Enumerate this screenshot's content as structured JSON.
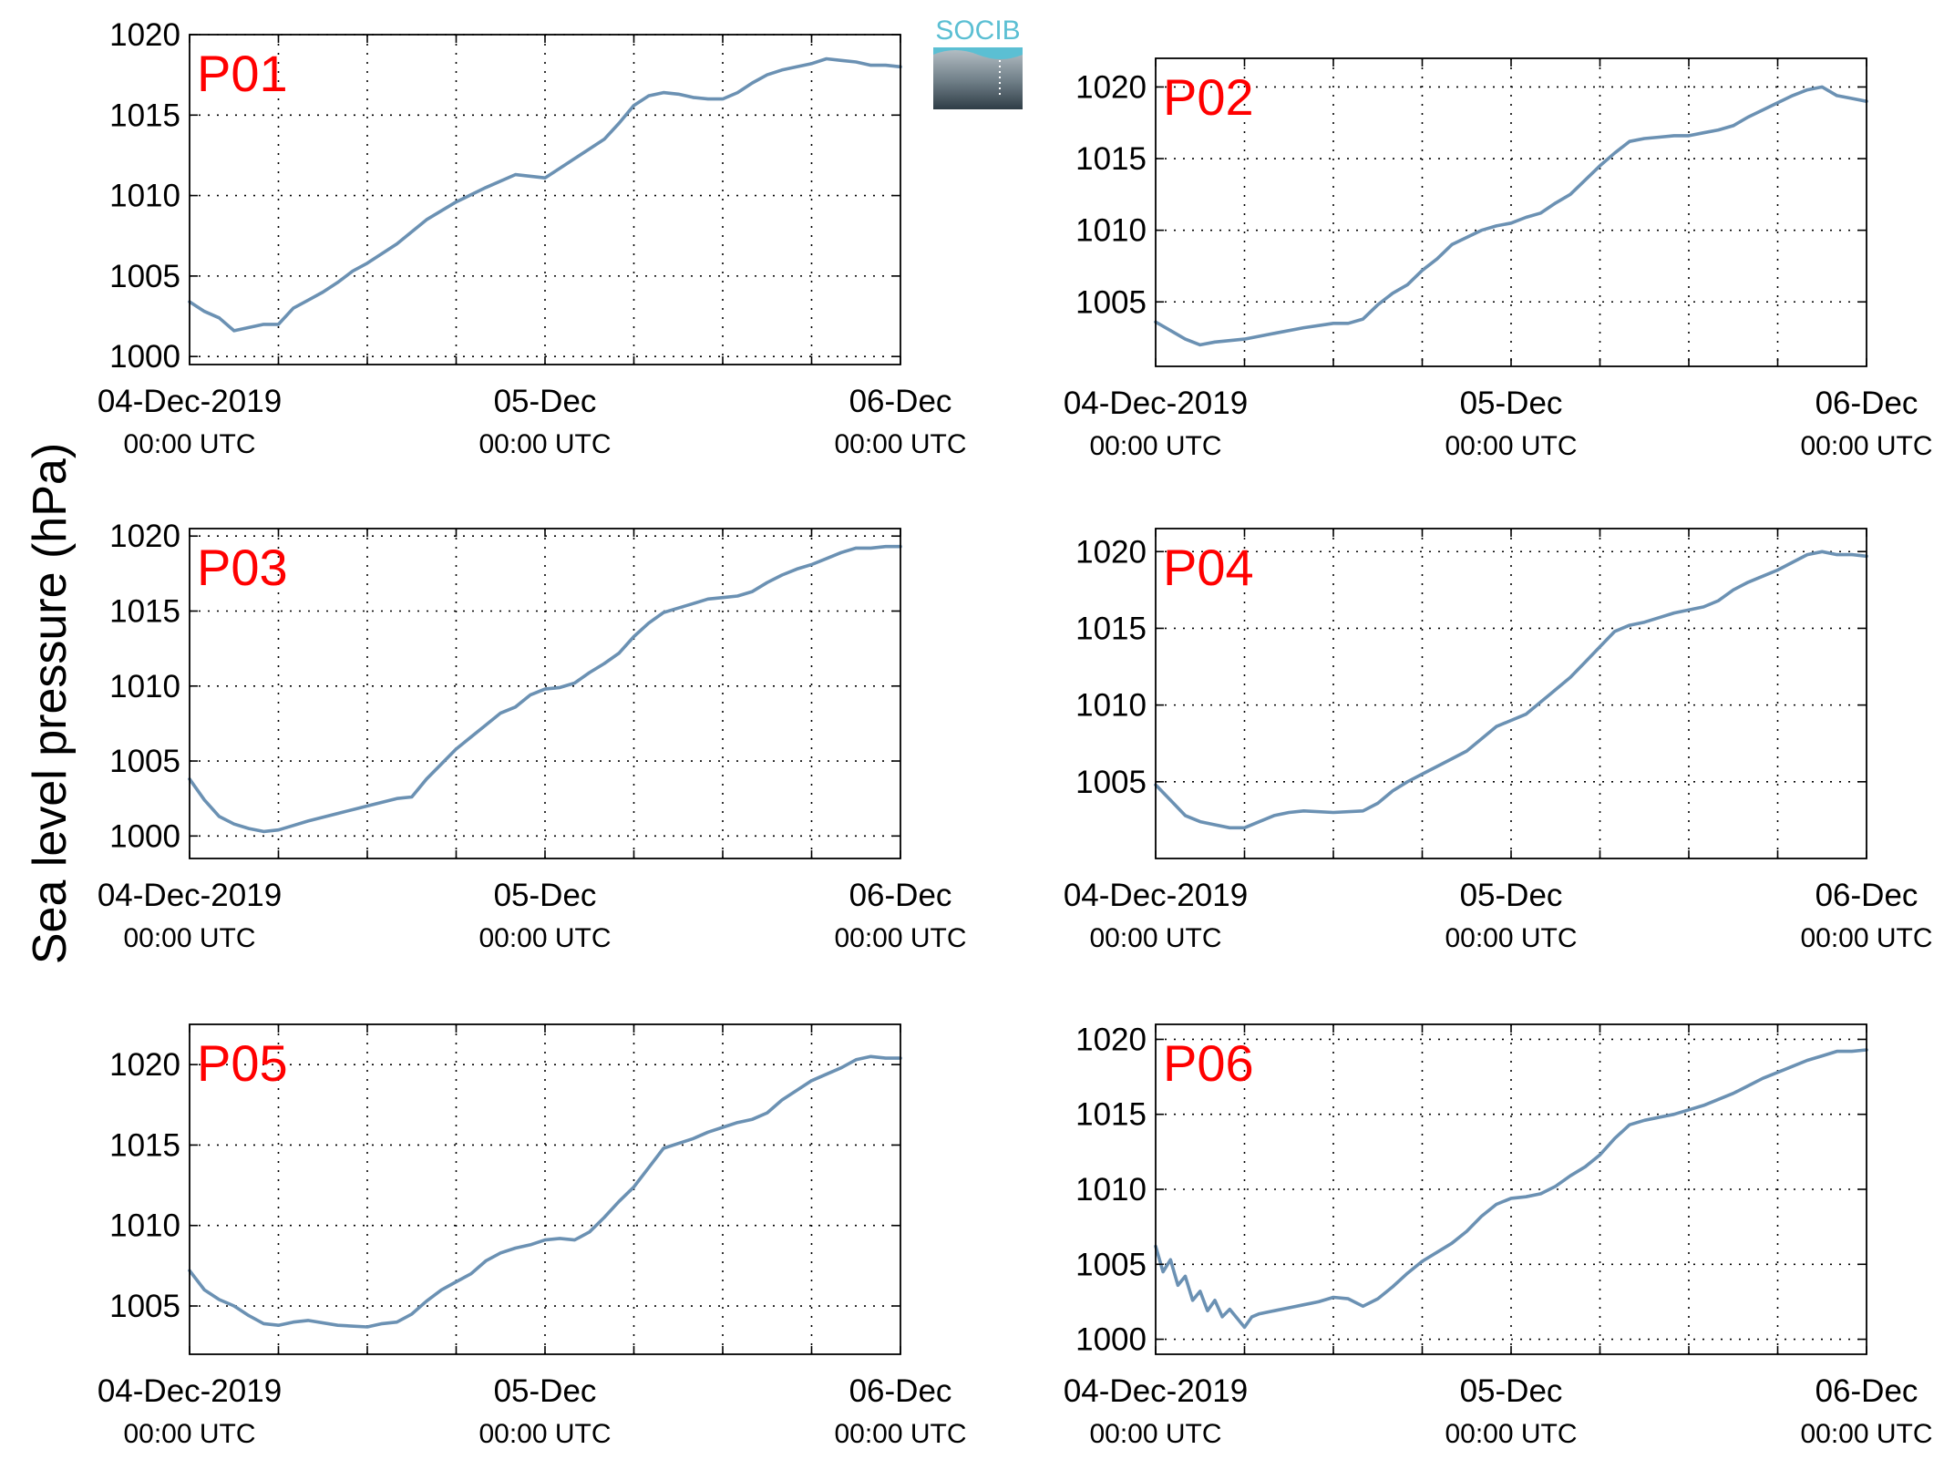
{
  "figure": {
    "ylabel": "Sea level pressure (hPa)",
    "logo_text": "SOCIB",
    "line_color": "#6b91b3",
    "panel_label_color": "#ff0000"
  },
  "chart_data": [
    {
      "type": "line",
      "panel": "P01",
      "xlim_hours": [
        0,
        48
      ],
      "ylim": [
        999.5,
        1020
      ],
      "yticks": [
        1000,
        1005,
        1010,
        1015,
        1020
      ],
      "xticks": [
        {
          "h": 0,
          "line1": "04-Dec-2019",
          "line2": "00:00 UTC"
        },
        {
          "h": 24,
          "line1": "05-Dec",
          "line2": "00:00 UTC"
        },
        {
          "h": 48,
          "line1": "06-Dec",
          "line2": "00:00 UTC"
        }
      ],
      "grid_hours": [
        6,
        12,
        18,
        24,
        30,
        36,
        42
      ],
      "series": [
        {
          "x_hours": [
            0,
            1,
            2,
            3,
            4,
            5,
            6,
            7,
            8,
            9,
            10,
            11,
            12,
            14,
            16,
            18,
            20,
            22,
            24,
            25,
            26,
            27,
            28,
            29,
            30,
            31,
            32,
            33,
            34,
            35,
            36,
            37,
            38,
            39,
            40,
            41,
            42,
            43,
            44,
            45,
            46,
            47,
            48
          ],
          "values": [
            1003.4,
            1002.8,
            1002.4,
            1001.6,
            1001.8,
            1002.0,
            1002.0,
            1003.0,
            1003.5,
            1004.0,
            1004.6,
            1005.3,
            1005.8,
            1007.0,
            1008.5,
            1009.6,
            1010.5,
            1011.3,
            1011.1,
            1011.7,
            1012.3,
            1012.9,
            1013.5,
            1014.5,
            1015.6,
            1016.2,
            1016.4,
            1016.3,
            1016.1,
            1016.0,
            1016.0,
            1016.4,
            1017.0,
            1017.5,
            1017.8,
            1018.0,
            1018.2,
            1018.5,
            1018.4,
            1018.3,
            1018.1,
            1018.1,
            1018.0
          ]
        }
      ]
    },
    {
      "type": "line",
      "panel": "P02",
      "xlim_hours": [
        0,
        48
      ],
      "ylim": [
        1000.5,
        1022
      ],
      "yticks": [
        1005,
        1010,
        1015,
        1020
      ],
      "xticks": [
        {
          "h": 0,
          "line1": "04-Dec-2019",
          "line2": "00:00 UTC"
        },
        {
          "h": 24,
          "line1": "05-Dec",
          "line2": "00:00 UTC"
        },
        {
          "h": 48,
          "line1": "06-Dec",
          "line2": "00:00 UTC"
        }
      ],
      "grid_hours": [
        6,
        12,
        18,
        24,
        30,
        36,
        42
      ],
      "series": [
        {
          "x_hours": [
            0,
            1,
            2,
            3,
            4,
            5,
            6,
            8,
            10,
            12,
            13,
            14,
            15,
            16,
            17,
            18,
            19,
            20,
            21,
            22,
            23,
            24,
            25,
            26,
            27,
            28,
            29,
            30,
            31,
            32,
            33,
            34,
            35,
            36,
            37,
            38,
            39,
            40,
            41,
            42,
            43,
            44,
            45,
            46,
            47,
            48
          ],
          "values": [
            1003.6,
            1003.0,
            1002.4,
            1002.0,
            1002.2,
            1002.3,
            1002.4,
            1002.8,
            1003.2,
            1003.5,
            1003.5,
            1003.8,
            1004.8,
            1005.6,
            1006.2,
            1007.2,
            1008.0,
            1009.0,
            1009.5,
            1010.0,
            1010.3,
            1010.5,
            1010.9,
            1011.2,
            1011.9,
            1012.5,
            1013.5,
            1014.5,
            1015.4,
            1016.2,
            1016.4,
            1016.5,
            1016.6,
            1016.6,
            1016.8,
            1017.0,
            1017.3,
            1017.9,
            1018.4,
            1018.9,
            1019.4,
            1019.8,
            1020.0,
            1019.4,
            1019.2,
            1019.0
          ]
        }
      ]
    },
    {
      "type": "line",
      "panel": "P03",
      "xlim_hours": [
        0,
        48
      ],
      "ylim": [
        998.5,
        1020.5
      ],
      "yticks": [
        1000,
        1005,
        1010,
        1015,
        1020
      ],
      "xticks": [
        {
          "h": 0,
          "line1": "04-Dec-2019",
          "line2": "00:00 UTC"
        },
        {
          "h": 24,
          "line1": "05-Dec",
          "line2": "00:00 UTC"
        },
        {
          "h": 48,
          "line1": "06-Dec",
          "line2": "00:00 UTC"
        }
      ],
      "grid_hours": [
        6,
        12,
        18,
        24,
        30,
        36,
        42
      ],
      "series": [
        {
          "x_hours": [
            0,
            1,
            2,
            3,
            4,
            5,
            6,
            7,
            8,
            10,
            12,
            14,
            15,
            16,
            17,
            18,
            19,
            20,
            21,
            22,
            23,
            24,
            25,
            26,
            27,
            28,
            29,
            30,
            31,
            32,
            33,
            34,
            35,
            36,
            37,
            38,
            39,
            40,
            41,
            42,
            43,
            44,
            45,
            46,
            47,
            48
          ],
          "values": [
            1003.8,
            1002.4,
            1001.3,
            1000.8,
            1000.5,
            1000.3,
            1000.4,
            1000.7,
            1001.0,
            1001.5,
            1002.0,
            1002.5,
            1002.6,
            1003.8,
            1004.8,
            1005.8,
            1006.6,
            1007.4,
            1008.2,
            1008.6,
            1009.4,
            1009.8,
            1009.9,
            1010.2,
            1010.9,
            1011.5,
            1012.2,
            1013.3,
            1014.2,
            1014.9,
            1015.2,
            1015.5,
            1015.8,
            1015.9,
            1016.0,
            1016.3,
            1016.9,
            1017.4,
            1017.8,
            1018.1,
            1018.5,
            1018.9,
            1019.2,
            1019.2,
            1019.3,
            1019.3
          ]
        }
      ]
    },
    {
      "type": "line",
      "panel": "P04",
      "xlim_hours": [
        0,
        48
      ],
      "ylim": [
        1000,
        1021.5
      ],
      "yticks": [
        1005,
        1010,
        1015,
        1020
      ],
      "xticks": [
        {
          "h": 0,
          "line1": "04-Dec-2019",
          "line2": "00:00 UTC"
        },
        {
          "h": 24,
          "line1": "05-Dec",
          "line2": "00:00 UTC"
        },
        {
          "h": 48,
          "line1": "06-Dec",
          "line2": "00:00 UTC"
        }
      ],
      "grid_hours": [
        6,
        12,
        18,
        24,
        30,
        36,
        42
      ],
      "series": [
        {
          "x_hours": [
            0,
            1,
            2,
            3,
            4,
            5,
            6,
            7,
            8,
            9,
            10,
            12,
            14,
            15,
            16,
            17,
            18,
            19,
            20,
            21,
            22,
            23,
            24,
            25,
            26,
            27,
            28,
            29,
            30,
            31,
            32,
            33,
            34,
            35,
            36,
            37,
            38,
            39,
            40,
            41,
            42,
            43,
            44,
            45,
            46,
            47,
            48
          ],
          "values": [
            1004.8,
            1003.8,
            1002.8,
            1002.4,
            1002.2,
            1002.0,
            1002.0,
            1002.4,
            1002.8,
            1003.0,
            1003.1,
            1003.0,
            1003.1,
            1003.6,
            1004.4,
            1005.0,
            1005.5,
            1006.0,
            1006.5,
            1007.0,
            1007.8,
            1008.6,
            1009.0,
            1009.4,
            1010.2,
            1011.0,
            1011.8,
            1012.8,
            1013.8,
            1014.8,
            1015.2,
            1015.4,
            1015.7,
            1016.0,
            1016.2,
            1016.4,
            1016.8,
            1017.5,
            1018.0,
            1018.4,
            1018.8,
            1019.3,
            1019.8,
            1020.0,
            1019.8,
            1019.8,
            1019.7
          ]
        }
      ]
    },
    {
      "type": "line",
      "panel": "P05",
      "xlim_hours": [
        0,
        48
      ],
      "ylim": [
        1002,
        1022.5
      ],
      "yticks": [
        1005,
        1010,
        1015,
        1020
      ],
      "xticks": [
        {
          "h": 0,
          "line1": "04-Dec-2019",
          "line2": "00:00 UTC"
        },
        {
          "h": 24,
          "line1": "05-Dec",
          "line2": "00:00 UTC"
        },
        {
          "h": 48,
          "line1": "06-Dec",
          "line2": "00:00 UTC"
        }
      ],
      "grid_hours": [
        6,
        12,
        18,
        24,
        30,
        36,
        42
      ],
      "series": [
        {
          "x_hours": [
            0,
            1,
            2,
            3,
            4,
            5,
            6,
            7,
            8,
            10,
            12,
            13,
            14,
            15,
            16,
            17,
            18,
            19,
            20,
            21,
            22,
            23,
            24,
            25,
            26,
            27,
            28,
            29,
            30,
            31,
            32,
            33,
            34,
            35,
            36,
            37,
            38,
            39,
            40,
            41,
            42,
            43,
            44,
            45,
            46,
            47,
            48
          ],
          "values": [
            1007.2,
            1006.0,
            1005.4,
            1005.0,
            1004.4,
            1003.9,
            1003.8,
            1004.0,
            1004.1,
            1003.8,
            1003.7,
            1003.9,
            1004.0,
            1004.5,
            1005.3,
            1006.0,
            1006.5,
            1007.0,
            1007.8,
            1008.3,
            1008.6,
            1008.8,
            1009.1,
            1009.2,
            1009.1,
            1009.6,
            1010.5,
            1011.5,
            1012.4,
            1013.6,
            1014.8,
            1015.1,
            1015.4,
            1015.8,
            1016.1,
            1016.4,
            1016.6,
            1017.0,
            1017.8,
            1018.4,
            1019.0,
            1019.4,
            1019.8,
            1020.3,
            1020.5,
            1020.4,
            1020.4
          ]
        }
      ]
    },
    {
      "type": "line",
      "panel": "P06",
      "xlim_hours": [
        0,
        48
      ],
      "ylim": [
        999,
        1021
      ],
      "yticks": [
        1000,
        1005,
        1010,
        1015,
        1020
      ],
      "xticks": [
        {
          "h": 0,
          "line1": "04-Dec-2019",
          "line2": "00:00 UTC"
        },
        {
          "h": 24,
          "line1": "05-Dec",
          "line2": "00:00 UTC"
        },
        {
          "h": 48,
          "line1": "06-Dec",
          "line2": "00:00 UTC"
        }
      ],
      "grid_hours": [
        6,
        12,
        18,
        24,
        30,
        36,
        42
      ],
      "series": [
        {
          "x_hours": [
            0,
            0.5,
            1,
            1.5,
            2,
            2.5,
            3,
            3.5,
            4,
            4.5,
            5,
            5.5,
            6,
            6.5,
            7,
            8,
            9,
            10,
            11,
            12,
            13,
            14,
            15,
            16,
            17,
            18,
            19,
            20,
            21,
            22,
            23,
            24,
            25,
            26,
            27,
            28,
            29,
            30,
            31,
            32,
            33,
            34,
            35,
            36,
            37,
            38,
            39,
            40,
            41,
            42,
            43,
            44,
            45,
            46,
            47,
            48
          ],
          "values": [
            1006.2,
            1004.5,
            1005.3,
            1003.6,
            1004.2,
            1002.6,
            1003.2,
            1001.9,
            1002.6,
            1001.5,
            1002.0,
            1001.4,
            1000.8,
            1001.5,
            1001.7,
            1001.9,
            1002.1,
            1002.3,
            1002.5,
            1002.8,
            1002.7,
            1002.2,
            1002.7,
            1003.5,
            1004.4,
            1005.2,
            1005.8,
            1006.4,
            1007.2,
            1008.2,
            1009.0,
            1009.4,
            1009.5,
            1009.7,
            1010.2,
            1010.9,
            1011.5,
            1012.3,
            1013.4,
            1014.3,
            1014.6,
            1014.8,
            1015.0,
            1015.3,
            1015.6,
            1016.0,
            1016.4,
            1016.9,
            1017.4,
            1017.8,
            1018.2,
            1018.6,
            1018.9,
            1019.2,
            1019.2,
            1019.3
          ]
        }
      ]
    }
  ]
}
